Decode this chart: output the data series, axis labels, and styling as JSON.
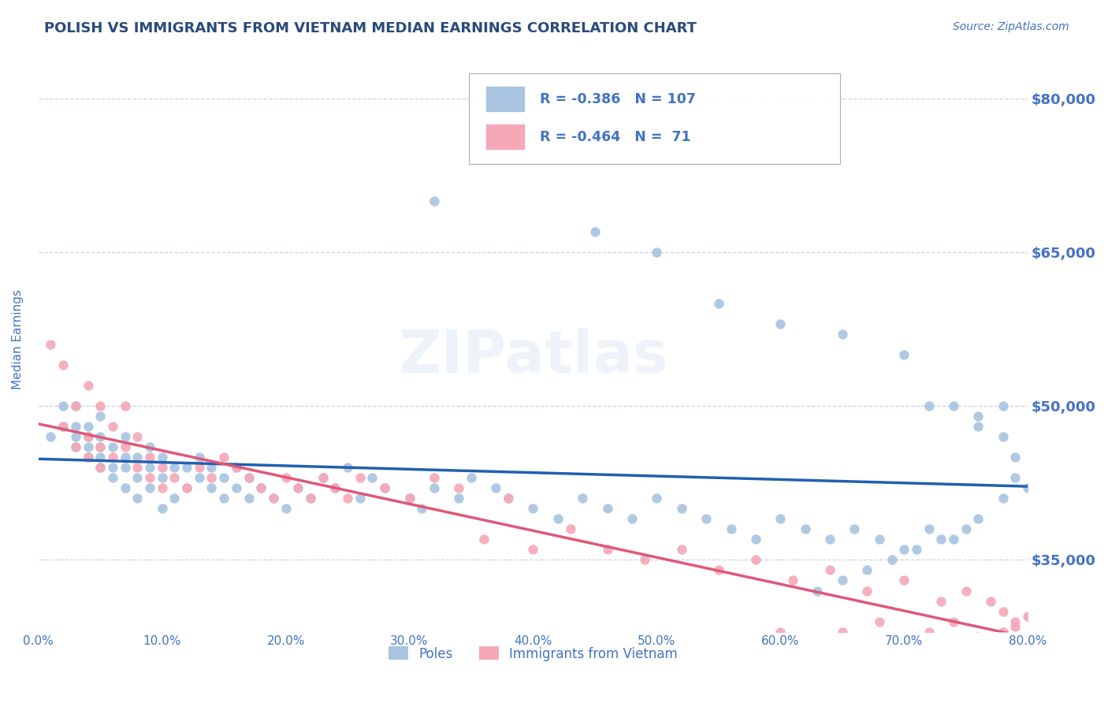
{
  "title": "POLISH VS IMMIGRANTS FROM VIETNAM MEDIAN EARNINGS CORRELATION CHART",
  "source_text": "Source: ZipAtlas.com",
  "ylabel": "Median Earnings",
  "xmin": 0.0,
  "xmax": 0.8,
  "ymin": 28000,
  "ymax": 85000,
  "yticks": [
    35000,
    50000,
    65000,
    80000
  ],
  "ytick_labels": [
    "$35,000",
    "$50,000",
    "$65,000",
    "$80,000"
  ],
  "xticks": [
    0.0,
    0.1,
    0.2,
    0.3,
    0.4,
    0.5,
    0.6,
    0.7,
    0.8
  ],
  "xtick_labels": [
    "0.0%",
    "10.0%",
    "20.0%",
    "30.0%",
    "40.0%",
    "50.0%",
    "60.0%",
    "70.0%",
    "80.0%"
  ],
  "poles_color": "#a8c4e0",
  "vietnam_color": "#f4a8b8",
  "poles_line_color": "#2060b0",
  "vietnam_line_color": "#e05878",
  "R_poles": -0.386,
  "N_poles": 107,
  "R_vietnam": -0.464,
  "N_vietnam": 71,
  "legend_label_poles": "Poles",
  "legend_label_vietnam": "Immigrants from Vietnam",
  "watermark": "ZIPatlas",
  "title_color": "#2a4a7c",
  "axis_color": "#4472c4",
  "tick_color": "#4472c4",
  "grid_color": "#c0d0e8",
  "poles_scatter": {
    "x": [
      0.01,
      0.02,
      0.02,
      0.03,
      0.03,
      0.03,
      0.03,
      0.04,
      0.04,
      0.04,
      0.04,
      0.05,
      0.05,
      0.05,
      0.05,
      0.05,
      0.06,
      0.06,
      0.06,
      0.07,
      0.07,
      0.07,
      0.07,
      0.08,
      0.08,
      0.08,
      0.09,
      0.09,
      0.09,
      0.1,
      0.1,
      0.1,
      0.11,
      0.11,
      0.12,
      0.12,
      0.13,
      0.13,
      0.14,
      0.14,
      0.15,
      0.15,
      0.16,
      0.16,
      0.17,
      0.17,
      0.18,
      0.19,
      0.2,
      0.21,
      0.22,
      0.23,
      0.24,
      0.25,
      0.26,
      0.27,
      0.28,
      0.3,
      0.31,
      0.32,
      0.34,
      0.35,
      0.37,
      0.38,
      0.4,
      0.42,
      0.44,
      0.46,
      0.48,
      0.5,
      0.52,
      0.54,
      0.56,
      0.58,
      0.6,
      0.62,
      0.64,
      0.66,
      0.68,
      0.7,
      0.72,
      0.74,
      0.32,
      0.45,
      0.5,
      0.55,
      0.6,
      0.65,
      0.7,
      0.72,
      0.74,
      0.76,
      0.78,
      0.76,
      0.78,
      0.79,
      0.79,
      0.8,
      0.78,
      0.76,
      0.75,
      0.73,
      0.71,
      0.69,
      0.67,
      0.65,
      0.63
    ],
    "y": [
      47000,
      48000,
      50000,
      46000,
      47000,
      48000,
      50000,
      45000,
      46000,
      47000,
      48000,
      44000,
      45000,
      46000,
      47000,
      49000,
      43000,
      44000,
      46000,
      42000,
      44000,
      45000,
      47000,
      41000,
      43000,
      45000,
      42000,
      44000,
      46000,
      40000,
      43000,
      45000,
      41000,
      44000,
      42000,
      44000,
      43000,
      45000,
      42000,
      44000,
      41000,
      43000,
      42000,
      44000,
      41000,
      43000,
      42000,
      41000,
      40000,
      42000,
      41000,
      43000,
      42000,
      44000,
      41000,
      43000,
      42000,
      41000,
      40000,
      42000,
      41000,
      43000,
      42000,
      41000,
      40000,
      39000,
      41000,
      40000,
      39000,
      41000,
      40000,
      39000,
      38000,
      37000,
      39000,
      38000,
      37000,
      38000,
      37000,
      36000,
      38000,
      37000,
      70000,
      67000,
      65000,
      60000,
      58000,
      57000,
      55000,
      50000,
      50000,
      49000,
      50000,
      48000,
      47000,
      45000,
      43000,
      42000,
      41000,
      39000,
      38000,
      37000,
      36000,
      35000,
      34000,
      33000,
      32000
    ]
  },
  "vietnam_scatter": {
    "x": [
      0.01,
      0.02,
      0.02,
      0.03,
      0.03,
      0.04,
      0.04,
      0.04,
      0.05,
      0.05,
      0.05,
      0.06,
      0.06,
      0.07,
      0.07,
      0.08,
      0.08,
      0.09,
      0.09,
      0.1,
      0.1,
      0.11,
      0.12,
      0.13,
      0.14,
      0.15,
      0.16,
      0.17,
      0.18,
      0.19,
      0.2,
      0.21,
      0.22,
      0.23,
      0.24,
      0.25,
      0.26,
      0.28,
      0.3,
      0.32,
      0.34,
      0.36,
      0.38,
      0.4,
      0.43,
      0.46,
      0.49,
      0.52,
      0.55,
      0.58,
      0.61,
      0.64,
      0.67,
      0.7,
      0.73,
      0.75,
      0.77,
      0.78,
      0.79,
      0.8,
      0.79,
      0.78,
      0.76,
      0.74,
      0.72,
      0.7,
      0.68,
      0.65,
      0.62,
      0.6,
      0.57
    ],
    "y": [
      56000,
      54000,
      48000,
      50000,
      46000,
      47000,
      45000,
      52000,
      44000,
      46000,
      50000,
      45000,
      48000,
      46000,
      50000,
      44000,
      47000,
      43000,
      45000,
      42000,
      44000,
      43000,
      42000,
      44000,
      43000,
      45000,
      44000,
      43000,
      42000,
      41000,
      43000,
      42000,
      41000,
      43000,
      42000,
      41000,
      43000,
      42000,
      41000,
      43000,
      42000,
      37000,
      41000,
      36000,
      38000,
      36000,
      35000,
      36000,
      34000,
      35000,
      33000,
      34000,
      32000,
      33000,
      31000,
      32000,
      31000,
      30000,
      29000,
      29500,
      28500,
      28000,
      27500,
      29000,
      28000,
      27000,
      29000,
      28000,
      27000,
      28000,
      27000
    ]
  }
}
